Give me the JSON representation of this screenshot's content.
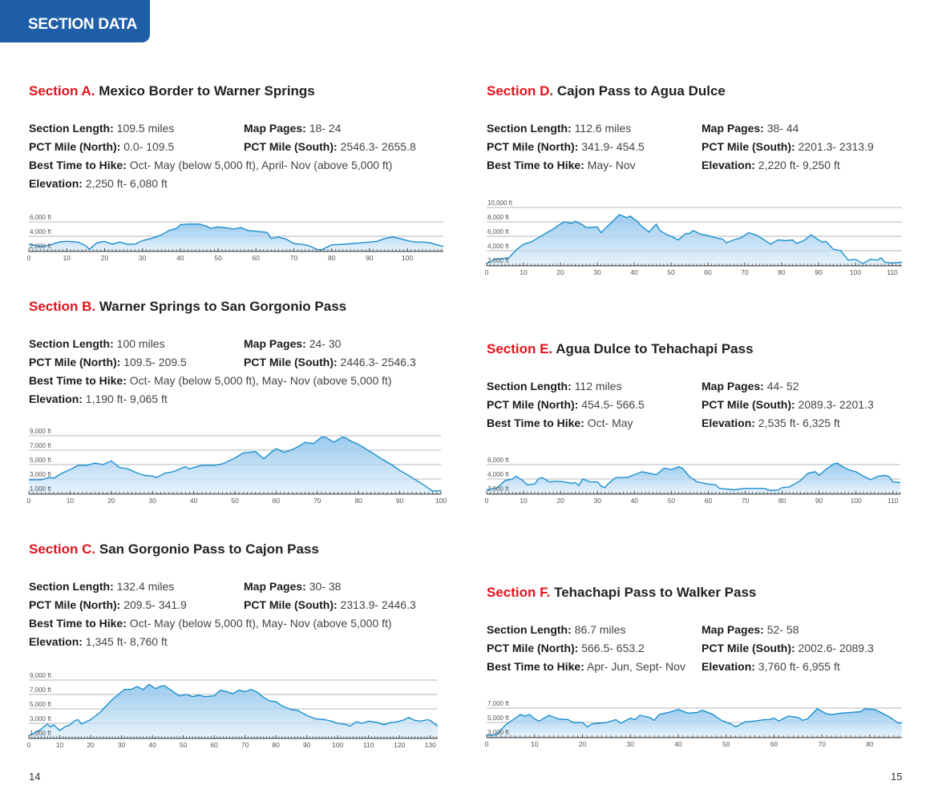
{
  "header": {
    "title": "SECTION DATA"
  },
  "labels": {
    "length": "Section Length:",
    "map": "Map Pages:",
    "north": "PCT Mile (North):",
    "south": "PCT Mile (South):",
    "best": "Best Time to Hike:",
    "elev": "Elevation:"
  },
  "sections": {
    "A": {
      "letter": "Section A.",
      "title": "Mexico Border to Warner Springs",
      "length": "109.5 miles",
      "map": "18- 24",
      "north": "0.0- 109.5",
      "south": "2546.3- 2655.8",
      "best": "Oct- May (below 5,000 ft), April- Nov (above 5,000 ft)",
      "elev": "2,250 ft- 6,080 ft"
    },
    "B": {
      "letter": "Section B.",
      "title": "Warner Springs to San Gorgonio Pass",
      "length": "100 miles",
      "map": "24- 30",
      "north": "109.5- 209.5",
      "south": "2446.3- 2546.3",
      "best": "Oct- May (below 5,000 ft), May- Nov (above 5,000 ft)",
      "elev": "1,190 ft- 9,065 ft"
    },
    "C": {
      "letter": "Section C.",
      "title": "San Gorgonio Pass to Cajon Pass",
      "length": "132.4 miles",
      "map": "30- 38",
      "north": "209.5- 341.9",
      "south": "2313.9- 2446.3",
      "best": "Oct- May (below 5,000 ft), May- Nov (above 5,000 ft)",
      "elev": "1,345 ft- 8,760 ft"
    },
    "D": {
      "letter": "Section D.",
      "title": "Cajon Pass to Agua Dulce",
      "length": "112.6 miles",
      "map": "38- 44",
      "north": "341.9- 454.5",
      "south": "2201.3- 2313.9",
      "best": "May- Nov",
      "elev": "2,220 ft- 9,250 ft"
    },
    "E": {
      "letter": "Section E.",
      "title": "Agua Dulce to Tehachapi Pass",
      "length": "112 miles",
      "map": "44- 52",
      "north": "454.5- 566.5",
      "south": "2089.3- 2201.3",
      "best": "Oct- May",
      "elev": "2,535 ft- 6,325 ft"
    },
    "F": {
      "letter": "Section F.",
      "title": "Tehachapi Pass to Walker Pass",
      "length": "86.7 miles",
      "map": "52- 58",
      "north": "566.5- 653.2",
      "south": "2002.6- 2089.3",
      "best": "Apr- Jun, Sept- Nov",
      "elev": "3,760 ft- 6,955 ft"
    }
  },
  "page_numbers": {
    "left": "14",
    "right": "15"
  },
  "colors": {
    "accent_blue": "#1f5fa8",
    "section_red": "#e2121b",
    "profile_line": "#1b8fd0",
    "profile_fill": "#b9daf2"
  },
  "chart_data": [
    {
      "id": "A",
      "type": "area",
      "xlabel": "",
      "ylabel": "",
      "xlim": [
        0,
        109.5
      ],
      "ylim": [
        1900,
        6900
      ],
      "grid": true,
      "y_ticks": [
        2000,
        4000,
        6000
      ],
      "y_tick_labels": [
        "2,000 ft",
        "4,000 ft",
        "6,000 ft"
      ],
      "x_ticks": [
        0,
        10,
        20,
        30,
        40,
        50,
        60,
        70,
        80,
        90,
        100
      ],
      "x": [
        0,
        3,
        5,
        8,
        10,
        13,
        15,
        16,
        18,
        20,
        22,
        24,
        26,
        28,
        30,
        33,
        35,
        37,
        39,
        40,
        42,
        45,
        47,
        48,
        50,
        52,
        54,
        56,
        58,
        60,
        62,
        63,
        64,
        66,
        68,
        70,
        72,
        74,
        76,
        77,
        78,
        80,
        83,
        86,
        88,
        90,
        92,
        94,
        96,
        98,
        100,
        102,
        104,
        106,
        108,
        109.5
      ],
      "y": [
        2900,
        2600,
        2700,
        3200,
        3300,
        3200,
        2700,
        2200,
        3100,
        3300,
        2900,
        3200,
        2900,
        2900,
        3400,
        3800,
        4200,
        4800,
        5100,
        5600,
        5700,
        5700,
        5400,
        5100,
        5300,
        5200,
        5000,
        5200,
        4800,
        4700,
        4600,
        4500,
        3700,
        3900,
        3600,
        3000,
        2900,
        2700,
        2200,
        2100,
        2300,
        2800,
        2900,
        3000,
        3100,
        3200,
        3300,
        3700,
        3900,
        3700,
        3400,
        3200,
        3200,
        3100,
        2800,
        2600
      ]
    },
    {
      "id": "B",
      "type": "area",
      "xlabel": "",
      "ylabel": "",
      "xlim": [
        0,
        100
      ],
      "ylim": [
        900,
        9900
      ],
      "grid": true,
      "y_ticks": [
        1000,
        3000,
        5000,
        7000,
        9000
      ],
      "y_tick_labels": [
        "1,000 ft",
        "3,000 ft",
        "5,000 ft",
        "7,000 ft",
        "9,000 ft"
      ],
      "x_ticks": [
        0,
        10,
        20,
        30,
        40,
        50,
        60,
        70,
        80,
        90,
        100
      ],
      "x": [
        0,
        3,
        5,
        6,
        8,
        10,
        12,
        14,
        16,
        18,
        20,
        22,
        24,
        26,
        28,
        30,
        31,
        33,
        35,
        37,
        38,
        39,
        40,
        42,
        45,
        47,
        50,
        52,
        55,
        57,
        59,
        60,
        62,
        64,
        66,
        67,
        69,
        71,
        72,
        74,
        76,
        77,
        78,
        80,
        82,
        85,
        88,
        90,
        93,
        96,
        98,
        100
      ],
      "y": [
        2900,
        2900,
        3200,
        3100,
        3800,
        4300,
        4900,
        4900,
        5200,
        5000,
        5500,
        4600,
        4400,
        3900,
        3500,
        3400,
        3200,
        3800,
        4000,
        4500,
        4700,
        4400,
        4600,
        4900,
        4900,
        5100,
        5900,
        6600,
        6800,
        5800,
        6800,
        7200,
        6700,
        7100,
        7700,
        8100,
        7900,
        8800,
        8800,
        8100,
        8800,
        8700,
        8300,
        7800,
        7100,
        6000,
        5000,
        4200,
        3200,
        2100,
        1300,
        1400
      ]
    },
    {
      "id": "C",
      "type": "area",
      "xlabel": "",
      "ylabel": "",
      "xlim": [
        0,
        132.4
      ],
      "ylim": [
        900,
        9900
      ],
      "grid": true,
      "y_ticks": [
        1000,
        3000,
        5000,
        7000,
        9000
      ],
      "y_tick_labels": [
        "1,000 ft",
        "3,000 ft",
        "5,000 ft",
        "7,000 ft",
        "9,000 ft"
      ],
      "x_ticks": [
        0,
        10,
        20,
        30,
        40,
        50,
        60,
        70,
        80,
        90,
        100,
        110,
        120,
        130
      ],
      "x": [
        0,
        3,
        6,
        7,
        8,
        10,
        12,
        13,
        15,
        16,
        17,
        20,
        23,
        25,
        27,
        29,
        31,
        33,
        35,
        37,
        39,
        41,
        43,
        44,
        46,
        48,
        49,
        51,
        53,
        55,
        57,
        60,
        62,
        64,
        66,
        68,
        70,
        72,
        74,
        76,
        78,
        80,
        82,
        85,
        87,
        90,
        93,
        96,
        98,
        100,
        103,
        104,
        106,
        108,
        110,
        113,
        115,
        117,
        119,
        121,
        123,
        125,
        127,
        129,
        130,
        132.4
      ],
      "y": [
        1300,
        1900,
        2900,
        2500,
        2800,
        2000,
        2600,
        2700,
        3400,
        3500,
        2900,
        3500,
        4500,
        5400,
        6300,
        7000,
        7700,
        7700,
        8100,
        7700,
        8400,
        7800,
        8200,
        8200,
        7600,
        7000,
        6800,
        7000,
        6700,
        6900,
        6700,
        6800,
        7600,
        7400,
        7100,
        7600,
        7400,
        7700,
        7300,
        6600,
        6100,
        6000,
        5400,
        4900,
        4800,
        4100,
        3600,
        3500,
        3300,
        3000,
        2800,
        2600,
        3200,
        3000,
        3300,
        3100,
        2800,
        3100,
        3200,
        3400,
        3800,
        3400,
        3300,
        3500,
        3400,
        2600
      ]
    },
    {
      "id": "D",
      "type": "area",
      "xlabel": "",
      "ylabel": "",
      "xlim": [
        0,
        112.6
      ],
      "ylim": [
        1900,
        10900
      ],
      "grid": true,
      "y_ticks": [
        2000,
        4000,
        6000,
        8000,
        10000
      ],
      "y_tick_labels": [
        "2,000 ft",
        "4,000 ft",
        "6,000 ft",
        "8,000 ft",
        "10,000 ft"
      ],
      "x_ticks": [
        0,
        10,
        20,
        30,
        40,
        50,
        60,
        70,
        80,
        90,
        100,
        110
      ],
      "x": [
        0,
        2,
        4,
        6,
        8,
        10,
        12,
        14,
        16,
        18,
        20,
        21,
        23,
        24,
        26,
        27,
        30,
        31,
        33,
        36,
        38,
        39,
        41,
        42,
        44,
        46,
        47,
        49,
        50,
        52,
        54,
        55,
        56,
        58,
        60,
        62,
        64,
        65,
        67,
        69,
        71,
        73,
        75,
        77,
        79,
        81,
        83,
        84,
        86,
        88,
        90,
        91,
        92,
        94,
        96,
        98,
        100,
        102,
        104,
        106,
        107,
        108,
        110,
        112.6
      ],
      "y": [
        2200,
        2800,
        2900,
        3000,
        4100,
        4900,
        5200,
        5800,
        6400,
        7000,
        7700,
        8000,
        7800,
        8100,
        7600,
        7200,
        7300,
        6500,
        7500,
        9000,
        8600,
        8800,
        8000,
        7400,
        6600,
        7700,
        6800,
        6200,
        6000,
        5500,
        6400,
        6400,
        6800,
        6300,
        6100,
        5800,
        5600,
        5100,
        5500,
        5800,
        6500,
        6200,
        5600,
        4900,
        5500,
        5400,
        5500,
        5000,
        5400,
        6200,
        5500,
        5200,
        5300,
        4200,
        4000,
        2700,
        2800,
        2200,
        2800,
        2700,
        3000,
        2400,
        2300,
        2400
      ]
    },
    {
      "id": "E",
      "type": "area",
      "xlabel": "",
      "ylabel": "",
      "xlim": [
        0,
        112
      ],
      "ylim": [
        1900,
        6900
      ],
      "grid": true,
      "y_ticks": [
        2000,
        4000,
        6000
      ],
      "y_tick_labels": [
        "2,000 ft",
        "4,000 ft",
        "6,000 ft"
      ],
      "x_ticks": [
        0,
        10,
        20,
        30,
        40,
        50,
        60,
        70,
        80,
        90,
        100,
        110
      ],
      "x": [
        0,
        3,
        5,
        7,
        8,
        10,
        11,
        13,
        14,
        15,
        17,
        19,
        21,
        23,
        24,
        25,
        26,
        28,
        30,
        31,
        32,
        33,
        35,
        38,
        40,
        42,
        44,
        46,
        48,
        50,
        52,
        53,
        55,
        57,
        60,
        62,
        63,
        67,
        70,
        75,
        77,
        79,
        80,
        82,
        85,
        87,
        89,
        90,
        92,
        94,
        95,
        96,
        98,
        100,
        102,
        104,
        106,
        108,
        109,
        110,
        112
      ],
      "y": [
        2500,
        2800,
        3800,
        4000,
        4400,
        3700,
        3200,
        3300,
        4000,
        4200,
        3600,
        3700,
        3600,
        3400,
        3500,
        3100,
        4000,
        3600,
        3600,
        3000,
        2800,
        3400,
        4200,
        4200,
        4600,
        5000,
        4800,
        4600,
        5500,
        5300,
        5700,
        5500,
        4300,
        3600,
        3300,
        3200,
        2700,
        2500,
        2700,
        2700,
        2400,
        2500,
        2800,
        2900,
        3800,
        4800,
        5000,
        4500,
        5400,
        6100,
        6200,
        5800,
        5300,
        5000,
        4400,
        3900,
        4400,
        4500,
        4300,
        3600,
        3500
      ]
    },
    {
      "id": "F",
      "type": "area",
      "xlabel": "",
      "ylabel": "",
      "xlim": [
        0,
        86.7
      ],
      "ylim": [
        2900,
        7900
      ],
      "grid": true,
      "y_ticks": [
        3000,
        5000,
        7000
      ],
      "y_tick_labels": [
        "3,000 ft",
        "5,000 ft",
        "7,000 ft"
      ],
      "x_ticks": [
        0,
        10,
        20,
        30,
        40,
        50,
        60,
        70,
        80
      ],
      "x": [
        0,
        2,
        4,
        6,
        7,
        8,
        9,
        10,
        11,
        13,
        15,
        17,
        18,
        20,
        21,
        22,
        25,
        27,
        28,
        30,
        31,
        32,
        34,
        35,
        36,
        38,
        40,
        42,
        44,
        45,
        47,
        49,
        51,
        52,
        54,
        56,
        58,
        59,
        60,
        61,
        63,
        65,
        66,
        67,
        69,
        71,
        72,
        74,
        76,
        78,
        79,
        81,
        82,
        84,
        86,
        86.7
      ],
      "y": [
        3200,
        3300,
        4700,
        5600,
        6100,
        5900,
        6100,
        5500,
        5200,
        6000,
        5500,
        5400,
        5000,
        5000,
        4400,
        4800,
        5000,
        5400,
        4900,
        5600,
        5400,
        6000,
        5700,
        5300,
        6100,
        6400,
        6800,
        6300,
        6400,
        6700,
        6200,
        5300,
        4800,
        4400,
        5100,
        5200,
        5400,
        5400,
        5600,
        5200,
        5900,
        5700,
        5300,
        5500,
        6900,
        6200,
        6100,
        6300,
        6400,
        6500,
        6900,
        6800,
        6500,
        5800,
        4900,
        5000
      ]
    }
  ]
}
